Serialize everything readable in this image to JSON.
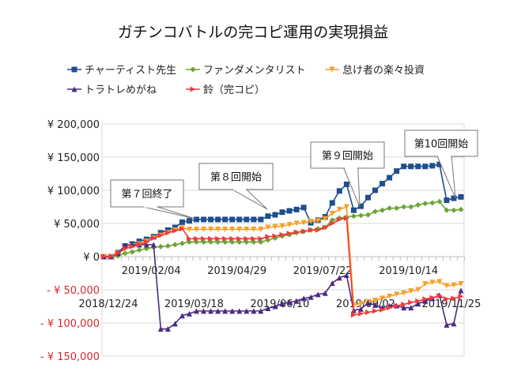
{
  "chart_data": {
    "type": "line",
    "title": "ガチンコバトルの完コピ運用の実現損益",
    "xlabel": "",
    "ylabel": "",
    "ylim": [
      -150000,
      200000
    ],
    "yticks": [
      {
        "value": 200000,
        "label": "¥ 200,000"
      },
      {
        "value": 150000,
        "label": "¥ 150,000"
      },
      {
        "value": 100000,
        "label": "¥ 100,000"
      },
      {
        "value": 50000,
        "label": "¥ 50,000"
      },
      {
        "value": 0,
        "label": "¥ 0"
      },
      {
        "value": -50000,
        "label": "- ¥ 50,000"
      },
      {
        "value": -100000,
        "label": "- ¥ 100,000"
      },
      {
        "value": -150000,
        "label": "- ¥ 150,000"
      }
    ],
    "negative_tick_color": "#d9262c",
    "x_start": "2018/12/24",
    "x_interval": "weekly",
    "xticks": [
      {
        "index": 0,
        "label": "2018/12/24",
        "row": 2
      },
      {
        "index": 6,
        "label": "2019/02/04",
        "row": 1
      },
      {
        "index": 12,
        "label": "2019/03/18",
        "row": 2
      },
      {
        "index": 18,
        "label": "2019/04/29",
        "row": 1
      },
      {
        "index": 24,
        "label": "2019/06/10",
        "row": 2
      },
      {
        "index": 30,
        "label": "2019/07/22",
        "row": 1
      },
      {
        "index": 36,
        "label": "2019/09/02",
        "row": 2
      },
      {
        "index": 42,
        "label": "2019/10/14",
        "row": 1
      },
      {
        "index": 48,
        "label": "2019/11/25",
        "row": 2
      }
    ],
    "grid": "horizontal",
    "legend_position": "top",
    "series": [
      {
        "name": "チャーティスト先生",
        "color": "#1f4e8c",
        "marker": "square",
        "values": [
          0,
          0,
          6000,
          16000,
          19000,
          23000,
          26000,
          30000,
          36000,
          40000,
          44000,
          52000,
          54000,
          56000,
          56000,
          56000,
          56000,
          56000,
          56000,
          56000,
          56000,
          56000,
          56000,
          61000,
          63000,
          67000,
          69000,
          71000,
          74000,
          51000,
          55000,
          60000,
          81000,
          99000,
          109000,
          70000,
          76000,
          89000,
          100000,
          110000,
          119000,
          129000,
          136000,
          136000,
          136000,
          136000,
          137000,
          139000,
          85000,
          88000,
          90000
        ]
      },
      {
        "name": "ファンダメンタリスト",
        "color": "#6aa533",
        "marker": "diamond",
        "values": [
          0,
          0,
          1000,
          5000,
          7000,
          10000,
          12000,
          14000,
          15000,
          16000,
          18000,
          20000,
          22000,
          22000,
          22000,
          22000,
          22000,
          22000,
          22000,
          22000,
          22000,
          22000,
          22000,
          25000,
          28000,
          31000,
          33000,
          36000,
          38000,
          40000,
          42000,
          44000,
          55000,
          58000,
          60000,
          61000,
          62000,
          63000,
          68000,
          70000,
          73000,
          73000,
          75000,
          75000,
          78000,
          80000,
          81000,
          83000,
          70000,
          70000,
          71000
        ]
      },
      {
        "name": "怠け者の楽々投資",
        "color": "#f7a02a",
        "marker": "triangle-down",
        "values": [
          0,
          0,
          5000,
          12000,
          16000,
          19000,
          23000,
          28000,
          32000,
          36000,
          40000,
          43000,
          41000,
          41000,
          41000,
          41000,
          41000,
          41000,
          41000,
          41000,
          41000,
          41000,
          41000,
          44000,
          45000,
          46000,
          48000,
          50000,
          51000,
          53000,
          54000,
          57000,
          65000,
          71000,
          75000,
          -73000,
          -71000,
          -68000,
          -66000,
          -63000,
          -60000,
          -57000,
          -55000,
          -52000,
          -50000,
          -41000,
          -39000,
          -38000,
          -44000,
          -43000,
          -41000
        ]
      },
      {
        "name": "トラトレめがね",
        "color": "#4b2a80",
        "marker": "triangle-up",
        "values": [
          0,
          0,
          5000,
          17000,
          18000,
          18000,
          18000,
          18000,
          -109000,
          -109000,
          -101000,
          -89000,
          -86000,
          -82000,
          -82000,
          -82000,
          -82000,
          -82000,
          -82000,
          -82000,
          -82000,
          -82000,
          -82000,
          -78000,
          -75000,
          -71000,
          -69000,
          -67000,
          -63000,
          -61000,
          -57000,
          -55000,
          -40000,
          -32000,
          -28000,
          -81000,
          -79000,
          -70000,
          -73000,
          -77000,
          -74000,
          -74000,
          -77000,
          -77000,
          -71000,
          -67000,
          -63000,
          -58000,
          -103000,
          -101000,
          -51000
        ]
      },
      {
        "name": "鈴（完コピ）",
        "color": "#ef3b3b",
        "marker": "triangle-right",
        "values": [
          0,
          0,
          5000,
          12000,
          15000,
          18000,
          22000,
          28000,
          32000,
          36000,
          39000,
          42000,
          27000,
          27000,
          27000,
          27000,
          27000,
          27000,
          27000,
          27000,
          27000,
          27000,
          27000,
          30000,
          31000,
          33000,
          35000,
          37000,
          38000,
          40000,
          40000,
          44000,
          50000,
          56000,
          58000,
          -88000,
          -86000,
          -84000,
          -82000,
          -80000,
          -77000,
          -74000,
          -72000,
          -69000,
          -67000,
          -64000,
          -62000,
          -59000,
          -64000,
          -63000,
          -60000
        ]
      }
    ],
    "annotations": [
      {
        "text": "第７回終了",
        "index": 12
      },
      {
        "text": "第８回開始",
        "index": 23
      },
      {
        "text": "第９回開始",
        "index": 36
      },
      {
        "text": "第10回開始",
        "index": 49
      }
    ]
  }
}
